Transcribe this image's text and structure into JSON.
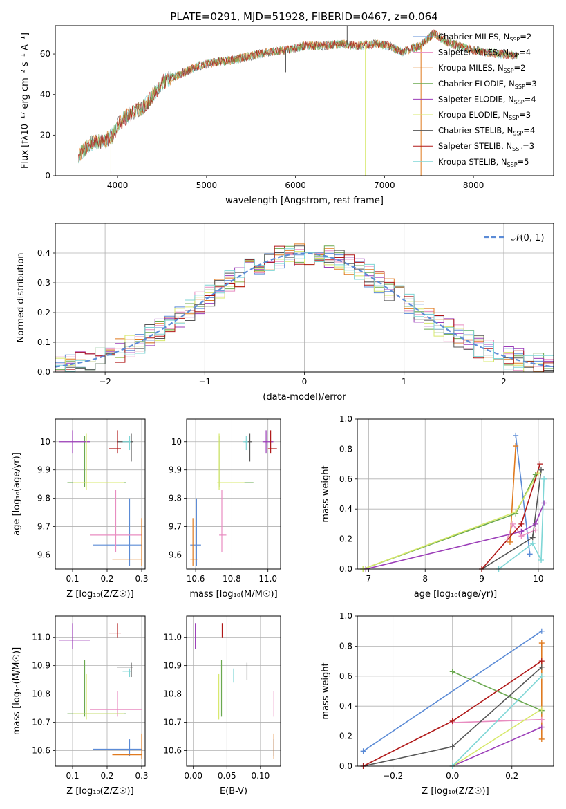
{
  "title": "PLATE=0291, MJD=51928, FIBERID=0467, z=0.064",
  "colors": {
    "c1": "#5b8bd6",
    "c2": "#e88cc0",
    "c3": "#e07a1f",
    "c4": "#6aa84f",
    "c5": "#9b3db8",
    "c6": "#d7e86b",
    "c7": "#555555",
    "c8": "#b01818",
    "c9": "#7fd6d6"
  },
  "chart_data": [
    {
      "id": "spectrum",
      "type": "line",
      "xlabel": "wavelength [Angstrom, rest frame]",
      "ylabel": "Flux [fλ10⁻¹⁷ erg cm⁻² s⁻¹ A⁻¹]",
      "xlim": [
        3300,
        8900
      ],
      "ylim": [
        0,
        74
      ],
      "xticks": [
        4000,
        5000,
        6000,
        7000,
        8000
      ],
      "yticks": [
        0,
        20,
        40,
        60
      ],
      "legend": {
        "placement": "top-right",
        "entries": [
          {
            "label": "Chabrier MILES, N",
            "sub": "SSP",
            "suffix": "=2",
            "color_key": "c1"
          },
          {
            "label": "Salpeter MILES, N",
            "sub": "SSP",
            "suffix": "=4",
            "color_key": "c2"
          },
          {
            "label": "Kroupa MILES, N",
            "sub": "SSP",
            "suffix": "=2",
            "color_key": "c3"
          },
          {
            "label": "Chabrier ELODIE, N",
            "sub": "SSP",
            "suffix": "=3",
            "color_key": "c4"
          },
          {
            "label": "Salpeter ELODIE, N",
            "sub": "SSP",
            "suffix": "=4",
            "color_key": "c5"
          },
          {
            "label": "Kroupa ELODIE, N",
            "sub": "SSP",
            "suffix": "=3",
            "color_key": "c6"
          },
          {
            "label": "Chabrier STELIB, N",
            "sub": "SSP",
            "suffix": "=4",
            "color_key": "c7"
          },
          {
            "label": "Salpeter STELIB, N",
            "sub": "SSP",
            "suffix": "=3",
            "color_key": "c8"
          },
          {
            "label": "Kroupa STELIB, N",
            "sub": "SSP",
            "suffix": "=5",
            "color_key": "c9"
          }
        ]
      },
      "continuum": [
        [
          3560,
          10
        ],
        [
          3700,
          16
        ],
        [
          3850,
          17
        ],
        [
          3950,
          20
        ],
        [
          4000,
          25
        ],
        [
          4100,
          29
        ],
        [
          4200,
          32
        ],
        [
          4300,
          34
        ],
        [
          4400,
          40
        ],
        [
          4500,
          46
        ],
        [
          4700,
          50
        ],
        [
          4900,
          54
        ],
        [
          5100,
          56
        ],
        [
          5300,
          57
        ],
        [
          5500,
          59
        ],
        [
          5700,
          61
        ],
        [
          5900,
          62
        ],
        [
          6100,
          64
        ],
        [
          6300,
          64
        ],
        [
          6500,
          65
        ],
        [
          6700,
          64
        ],
        [
          6900,
          65
        ],
        [
          7050,
          64
        ],
        [
          7200,
          61
        ],
        [
          7400,
          64
        ],
        [
          7550,
          70
        ],
        [
          7700,
          66
        ],
        [
          7900,
          63
        ],
        [
          8100,
          61
        ],
        [
          8300,
          60
        ],
        [
          8500,
          59
        ]
      ],
      "spikes": [
        {
          "x": 3925,
          "y": 0,
          "color_key": "c6"
        },
        {
          "x": 5230,
          "y": 73,
          "color_key": "c7"
        },
        {
          "x": 5890,
          "y": 51,
          "color_key": "c7"
        },
        {
          "x": 6580,
          "y": 74,
          "color_key": "c7"
        },
        {
          "x": 6785,
          "y": 0,
          "color_key": "c6"
        },
        {
          "x": 7410,
          "y": 0,
          "color_key": "c3"
        }
      ]
    },
    {
      "id": "residuals",
      "type": "line",
      "xlabel": "(data-model)/error",
      "ylabel": "Normed distribution",
      "xlim": [
        -2.5,
        2.5
      ],
      "ylim": [
        0,
        0.5
      ],
      "xticks": [
        -2,
        -1,
        0,
        1,
        2
      ],
      "xtick_labels": [
        "−2",
        "−1",
        "0",
        "1",
        "2"
      ],
      "yticks": [
        0,
        0.1,
        0.2,
        0.3,
        0.4
      ],
      "yticklabels": [
        "0.0",
        "0.1",
        "0.2",
        "0.3",
        "0.4"
      ],
      "legend": {
        "placement": "top-right",
        "entries": [
          {
            "label": "𝒩(0, 1)",
            "color_key": "c1"
          }
        ]
      },
      "normal_curve": {
        "mean": 0,
        "sd": 1,
        "style": "dashed"
      },
      "histogram_bin_width": 0.1
    },
    {
      "id": "age-vs-Z",
      "type": "scatter",
      "xlabel": "Z [log₁₀(Z/Z☉)]",
      "ylabel": "age  [log₁₀(age/yr)]",
      "xlim": [
        0.05,
        0.31
      ],
      "ylim": [
        9.55,
        10.08
      ],
      "xticks": [
        0.1,
        0.2,
        0.3
      ],
      "yticks": [
        9.6,
        9.7,
        9.8,
        9.9,
        10.0
      ],
      "points": [
        {
          "color_key": "c1",
          "x": 0.265,
          "y": 9.635,
          "xerr": [
            0.16,
            0.3
          ],
          "yerr": [
            9.56,
            9.8
          ]
        },
        {
          "color_key": "c2",
          "x": 0.225,
          "y": 9.67,
          "xerr": [
            0.15,
            0.3
          ],
          "yerr": [
            9.61,
            9.83
          ]
        },
        {
          "color_key": "c3",
          "x": 0.3,
          "y": 9.585,
          "xerr": [
            0.215,
            0.3
          ],
          "yerr": [
            9.56,
            9.73
          ]
        },
        {
          "color_key": "c4",
          "x": 0.135,
          "y": 9.855,
          "xerr": [
            0.085,
            0.255
          ],
          "yerr": [
            9.84,
            10.02
          ]
        },
        {
          "color_key": "c5",
          "x": 0.1,
          "y": 10.0,
          "xerr": [
            0.06,
            0.15
          ],
          "yerr": [
            9.96,
            10.04
          ]
        },
        {
          "color_key": "c6",
          "x": 0.14,
          "y": 9.855,
          "xerr": [
            0.1,
            0.25
          ],
          "yerr": [
            9.83,
            10.03
          ]
        },
        {
          "color_key": "c7",
          "x": 0.27,
          "y": 10.0,
          "xerr": [
            0.23,
            0.275
          ],
          "yerr": [
            9.93,
            10.03
          ]
        },
        {
          "color_key": "c8",
          "x": 0.23,
          "y": 9.975,
          "xerr": [
            0.205,
            0.24
          ],
          "yerr": [
            9.96,
            10.04
          ]
        },
        {
          "color_key": "c9",
          "x": 0.265,
          "y": 10.0,
          "xerr": [
            0.245,
            0.27
          ],
          "yerr": [
            9.97,
            10.02
          ]
        }
      ]
    },
    {
      "id": "age-vs-mass",
      "type": "scatter",
      "xlabel": "mass [log₁₀(M/M☉)]",
      "xlim": [
        10.55,
        11.07
      ],
      "ylim": [
        9.55,
        10.08
      ],
      "xticks": [
        10.6,
        10.8,
        11.0
      ],
      "xticklabels": [
        "10.6",
        "10.8",
        "11.0"
      ],
      "yticks": [
        9.6,
        9.7,
        9.8,
        9.9,
        10.0
      ],
      "points": [
        {
          "color_key": "c1",
          "x": 10.605,
          "y": 9.635,
          "xerr": [
            10.57,
            10.63
          ],
          "yerr": [
            9.56,
            9.8
          ]
        },
        {
          "color_key": "c2",
          "x": 10.745,
          "y": 9.67,
          "xerr": [
            10.73,
            10.77
          ],
          "yerr": [
            9.61,
            9.83
          ]
        },
        {
          "color_key": "c3",
          "x": 10.585,
          "y": 9.585,
          "xerr": [
            10.57,
            10.61
          ],
          "yerr": [
            9.56,
            9.73
          ]
        },
        {
          "color_key": "c4",
          "x": 10.73,
          "y": 9.855,
          "xerr": [
            10.72,
            10.92
          ],
          "yerr": [
            9.84,
            10.02
          ]
        },
        {
          "color_key": "c5",
          "x": 10.99,
          "y": 10.0,
          "xerr": [
            10.97,
            11.03
          ],
          "yerr": [
            9.96,
            10.04
          ]
        },
        {
          "color_key": "c6",
          "x": 10.73,
          "y": 9.855,
          "xerr": [
            10.72,
            10.87
          ],
          "yerr": [
            9.83,
            10.03
          ]
        },
        {
          "color_key": "c7",
          "x": 10.9,
          "y": 10.0,
          "xerr": [
            10.87,
            10.91
          ],
          "yerr": [
            9.93,
            10.03
          ]
        },
        {
          "color_key": "c8",
          "x": 11.015,
          "y": 9.975,
          "xerr": [
            11.0,
            11.05
          ],
          "yerr": [
            9.96,
            10.04
          ]
        },
        {
          "color_key": "c9",
          "x": 10.88,
          "y": 10.0,
          "xerr": [
            10.86,
            10.89
          ],
          "yerr": [
            9.97,
            10.02
          ]
        }
      ]
    },
    {
      "id": "weight-vs-age",
      "type": "line",
      "xlabel": "age  [log₁₀(age/yr)]",
      "ylabel": "mass weight",
      "xlim": [
        6.8,
        10.27
      ],
      "ylim": [
        0,
        1.0
      ],
      "xticks": [
        7,
        8,
        9,
        10
      ],
      "yticks": [
        0,
        0.2,
        0.4,
        0.6,
        0.8,
        1.0
      ],
      "yticklabels": [
        "0.0",
        "0.2",
        "0.4",
        "0.6",
        "0.8",
        "1.0"
      ],
      "series": [
        {
          "color_key": "c1",
          "x": [
            9.6,
            9.85
          ],
          "y": [
            0.89,
            0.1
          ]
        },
        {
          "color_key": "c2",
          "x": [
            9.45,
            9.55,
            9.7,
            9.95
          ],
          "y": [
            0.2,
            0.3,
            0.22,
            0.26
          ]
        },
        {
          "color_key": "c3",
          "x": [
            9.5,
            9.6
          ],
          "y": [
            0.18,
            0.82
          ]
        },
        {
          "color_key": "c4",
          "x": [
            6.9,
            9.6,
            9.95
          ],
          "y": [
            0.0,
            0.37,
            0.63
          ]
        },
        {
          "color_key": "c5",
          "x": [
            6.95,
            9.7,
            9.95,
            10.1
          ],
          "y": [
            0.0,
            0.25,
            0.3,
            0.44
          ]
        },
        {
          "color_key": "c6",
          "x": [
            6.9,
            9.6,
            10.0
          ],
          "y": [
            0.0,
            0.38,
            0.64
          ]
        },
        {
          "color_key": "c7",
          "x": [
            9.0,
            9.9,
            10.05
          ],
          "y": [
            0.0,
            0.21,
            0.66
          ]
        },
        {
          "color_key": "c8",
          "x": [
            9.0,
            9.7,
            10.03
          ],
          "y": [
            0.0,
            0.3,
            0.7
          ]
        },
        {
          "color_key": "c9",
          "x": [
            9.3,
            9.9,
            10.05,
            10.1
          ],
          "y": [
            0.0,
            0.17,
            0.06,
            0.6
          ]
        }
      ]
    },
    {
      "id": "mass-vs-Z",
      "type": "scatter",
      "xlabel": "Z [log₁₀(Z/Z☉)]",
      "ylabel": "mass [log₁₀(M/M☉)]",
      "xlim": [
        0.05,
        0.31
      ],
      "ylim": [
        10.545,
        11.075
      ],
      "xticks": [
        0.1,
        0.2,
        0.3
      ],
      "yticks": [
        10.6,
        10.7,
        10.8,
        10.9,
        11.0
      ],
      "yticklabels": [
        "10.6",
        "10.7",
        "10.8",
        "10.9",
        "11.0"
      ],
      "points": [
        {
          "color_key": "c1",
          "x": 0.265,
          "y": 10.605,
          "xerr": [
            0.16,
            0.3
          ],
          "yerr": [
            10.58,
            10.64
          ]
        },
        {
          "color_key": "c2",
          "x": 0.23,
          "y": 10.745,
          "xerr": [
            0.15,
            0.3
          ],
          "yerr": [
            10.72,
            10.81
          ]
        },
        {
          "color_key": "c3",
          "x": 0.3,
          "y": 10.585,
          "xerr": [
            0.215,
            0.3
          ],
          "yerr": [
            10.57,
            10.66
          ]
        },
        {
          "color_key": "c4",
          "x": 0.135,
          "y": 10.73,
          "xerr": [
            0.085,
            0.255
          ],
          "yerr": [
            10.72,
            10.92
          ]
        },
        {
          "color_key": "c5",
          "x": 0.1,
          "y": 10.99,
          "xerr": [
            0.06,
            0.15
          ],
          "yerr": [
            10.96,
            11.05
          ]
        },
        {
          "color_key": "c6",
          "x": 0.14,
          "y": 10.73,
          "xerr": [
            0.1,
            0.25
          ],
          "yerr": [
            10.71,
            10.87
          ]
        },
        {
          "color_key": "c7",
          "x": 0.27,
          "y": 10.895,
          "xerr": [
            0.23,
            0.275
          ],
          "yerr": [
            10.86,
            10.91
          ]
        },
        {
          "color_key": "c8",
          "x": 0.23,
          "y": 11.015,
          "xerr": [
            0.205,
            0.24
          ],
          "yerr": [
            11.0,
            11.05
          ]
        },
        {
          "color_key": "c9",
          "x": 0.265,
          "y": 10.88,
          "xerr": [
            0.245,
            0.27
          ],
          "yerr": [
            10.86,
            10.89
          ]
        }
      ]
    },
    {
      "id": "mass-vs-ebv",
      "type": "scatter",
      "xlabel": "E(B-V)",
      "xlim": [
        -0.01,
        0.13
      ],
      "ylim": [
        10.545,
        11.075
      ],
      "xticks": [
        0.0,
        0.05,
        0.1
      ],
      "xticklabels": [
        "0.00",
        "0.05",
        "0.10"
      ],
      "yticks": [
        10.6,
        10.7,
        10.8,
        10.9,
        11.0
      ],
      "yticklabels": [
        "10.6",
        "10.7",
        "10.8",
        "10.9",
        "11.0"
      ],
      "points": [
        {
          "color_key": "c1",
          "x": 0.12,
          "y": 10.605,
          "yerr": [
            10.58,
            10.64
          ]
        },
        {
          "color_key": "c2",
          "x": 0.12,
          "y": 10.745,
          "yerr": [
            10.72,
            10.81
          ]
        },
        {
          "color_key": "c3",
          "x": 0.12,
          "y": 10.585,
          "yerr": [
            10.57,
            10.66
          ]
        },
        {
          "color_key": "c4",
          "x": 0.042,
          "y": 10.73,
          "yerr": [
            10.72,
            10.92
          ]
        },
        {
          "color_key": "c5",
          "x": 0.003,
          "y": 10.99,
          "yerr": [
            10.96,
            11.05
          ]
        },
        {
          "color_key": "c6",
          "x": 0.038,
          "y": 10.73,
          "yerr": [
            10.71,
            10.87
          ]
        },
        {
          "color_key": "c7",
          "x": 0.08,
          "y": 10.895,
          "yerr": [
            10.85,
            10.91
          ]
        },
        {
          "color_key": "c8",
          "x": 0.043,
          "y": 11.015,
          "yerr": [
            11.0,
            11.05
          ]
        },
        {
          "color_key": "c9",
          "x": 0.06,
          "y": 10.88,
          "yerr": [
            10.84,
            10.89
          ]
        }
      ]
    },
    {
      "id": "weight-vs-Z",
      "type": "line",
      "xlabel": "Z [log₁₀(Z/Z☉)]",
      "ylabel": "mass weight",
      "xlim": [
        -0.32,
        0.34
      ],
      "ylim": [
        0,
        1.0
      ],
      "xticks": [
        -0.2,
        0.0,
        0.2
      ],
      "xticklabels": [
        "−0.2",
        "0.0",
        "0.2"
      ],
      "yticks": [
        0,
        0.2,
        0.4,
        0.6,
        0.8,
        1.0
      ],
      "yticklabels": [
        "0.0",
        "0.2",
        "0.4",
        "0.6",
        "0.8",
        "1.0"
      ],
      "series": [
        {
          "color_key": "c1",
          "x": [
            -0.3,
            0.3
          ],
          "y": [
            0.1,
            0.9
          ]
        },
        {
          "color_key": "c2",
          "x": [
            0.0,
            0.3
          ],
          "y": [
            0.29,
            0.31
          ]
        },
        {
          "color_key": "c3",
          "x": [
            0.3,
            0.3
          ],
          "y": [
            0.18,
            0.82
          ]
        },
        {
          "color_key": "c4",
          "x": [
            0.0,
            0.3
          ],
          "y": [
            0.63,
            0.37
          ]
        },
        {
          "color_key": "c5",
          "x": [
            0.0,
            0.3
          ],
          "y": [
            0.0,
            0.26
          ]
        },
        {
          "color_key": "c6",
          "x": [
            0.0,
            0.3
          ],
          "y": [
            0.0,
            0.38
          ]
        },
        {
          "color_key": "c7",
          "x": [
            -0.3,
            0.0,
            0.3
          ],
          "y": [
            0.0,
            0.13,
            0.66
          ]
        },
        {
          "color_key": "c8",
          "x": [
            -0.3,
            0.0,
            0.3
          ],
          "y": [
            0.0,
            0.3,
            0.7
          ]
        },
        {
          "color_key": "c9",
          "x": [
            0.0,
            0.3
          ],
          "y": [
            0.0,
            0.6
          ]
        }
      ]
    }
  ]
}
